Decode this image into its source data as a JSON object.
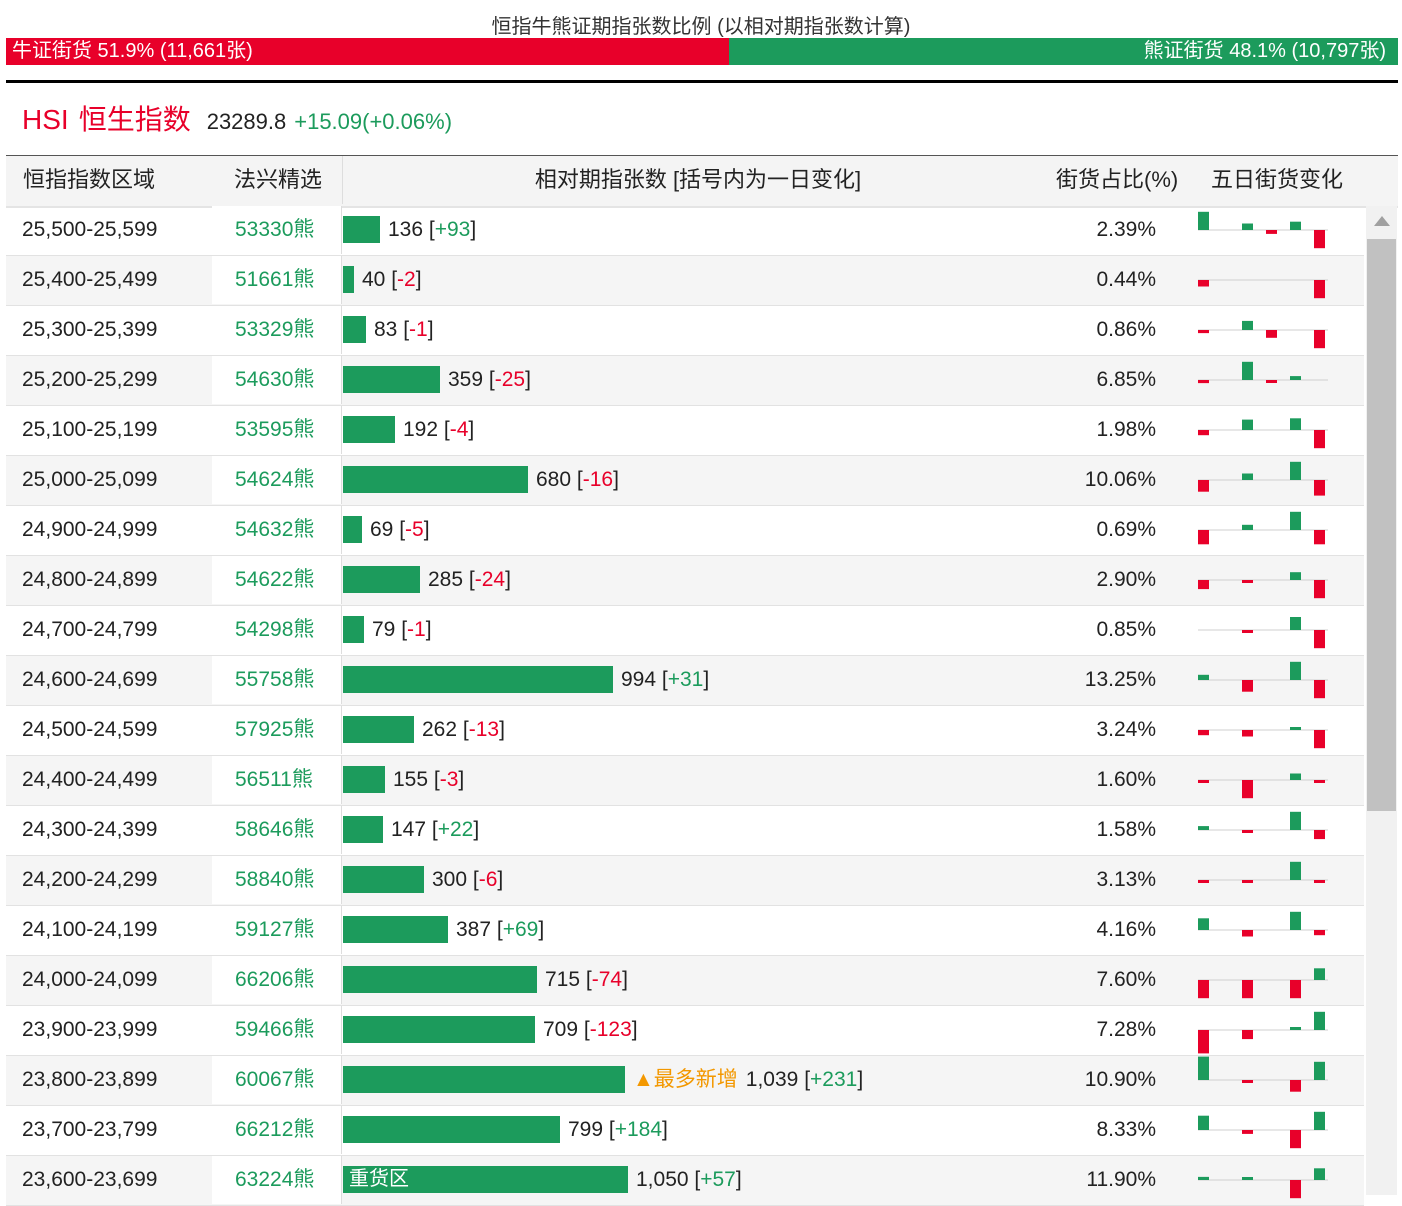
{
  "title": "恒指牛熊证期指张数比例 (以相对期指张数计算)",
  "ratio": {
    "bull_label": "牛证街货 51.9% (11,661张)",
    "bear_label": "熊证街货 48.1% (10,797张)",
    "bull_fraction": 0.519
  },
  "index": {
    "code": "HSI",
    "name": "恒生指数",
    "value": "23289.8",
    "change": "+15.09(+0.06%)"
  },
  "table": {
    "headers": {
      "range": "恒指指数区域",
      "pick": "法兴精选",
      "relative": "相对期指张数 [括号内为一日变化]",
      "share": "街货占比(%)",
      "five_day": "五日街货变化"
    },
    "max_value": 1050,
    "rows": [
      {
        "range": "25,500-25,599",
        "pick": "53330熊",
        "value": 136,
        "count": "136",
        "delta": "+93",
        "share": "2.39%",
        "tag": "",
        "bar_label": "",
        "five": [
          0,
          0.25,
          -0.15,
          0.32,
          -0.7,
          0.7
        ]
      },
      {
        "range": "25,400-25,499",
        "pick": "51661熊",
        "value": 40,
        "count": "40",
        "delta": "-2",
        "share": "0.44%",
        "tag": "",
        "bar_label": "",
        "five": [
          0,
          0,
          0,
          0,
          -0.7,
          -0.25
        ]
      },
      {
        "range": "25,300-25,399",
        "pick": "53329熊",
        "value": 83,
        "count": "83",
        "delta": "-1",
        "share": "0.86%",
        "tag": "",
        "bar_label": "",
        "five": [
          0,
          0.35,
          -0.3,
          0,
          -0.7,
          -0.12
        ]
      },
      {
        "range": "25,200-25,299",
        "pick": "54630熊",
        "value": 359,
        "count": "359",
        "delta": "-25",
        "share": "6.85%",
        "tag": "",
        "bar_label": "",
        "five": [
          0,
          0.7,
          -0.1,
          0.15,
          0,
          -0.12
        ]
      },
      {
        "range": "25,100-25,199",
        "pick": "53595熊",
        "value": 192,
        "count": "192",
        "delta": "-4",
        "share": "1.98%",
        "tag": "",
        "bar_label": "",
        "five": [
          0,
          0.4,
          0,
          0.45,
          -0.7,
          -0.2
        ]
      },
      {
        "range": "25,000-25,099",
        "pick": "54624熊",
        "value": 680,
        "count": "680",
        "delta": "-16",
        "share": "10.06%",
        "tag": "",
        "bar_label": "",
        "five": [
          0,
          0.25,
          0,
          0.7,
          -0.6,
          -0.45
        ]
      },
      {
        "range": "24,900-24,999",
        "pick": "54632熊",
        "value": 69,
        "count": "69",
        "delta": "-5",
        "share": "0.69%",
        "tag": "",
        "bar_label": "",
        "five": [
          0,
          0.2,
          0,
          0.7,
          -0.55,
          -0.55
        ]
      },
      {
        "range": "24,800-24,899",
        "pick": "54622熊",
        "value": 285,
        "count": "285",
        "delta": "-24",
        "share": "2.90%",
        "tag": "",
        "bar_label": "",
        "five": [
          0,
          -0.1,
          0,
          0.3,
          -0.7,
          -0.35
        ]
      },
      {
        "range": "24,700-24,799",
        "pick": "54298熊",
        "value": 79,
        "count": "79",
        "delta": "-1",
        "share": "0.85%",
        "tag": "",
        "bar_label": "",
        "five": [
          0,
          -0.1,
          0,
          0.5,
          -0.7,
          0
        ]
      },
      {
        "range": "24,600-24,699",
        "pick": "55758熊",
        "value": 994,
        "count": "994",
        "delta": "+31",
        "share": "13.25%",
        "tag": "",
        "bar_label": "",
        "five": [
          0,
          -0.45,
          0,
          0.7,
          -0.7,
          0.2
        ]
      },
      {
        "range": "24,500-24,599",
        "pick": "57925熊",
        "value": 262,
        "count": "262",
        "delta": "-13",
        "share": "3.24%",
        "tag": "",
        "bar_label": "",
        "five": [
          0,
          -0.25,
          0,
          0.1,
          -0.7,
          -0.2
        ]
      },
      {
        "range": "24,400-24,499",
        "pick": "56511熊",
        "value": 155,
        "count": "155",
        "delta": "-3",
        "share": "1.60%",
        "tag": "",
        "bar_label": "",
        "five": [
          0,
          -0.7,
          0,
          0.25,
          -0.05,
          -0.05
        ]
      },
      {
        "range": "24,300-24,399",
        "pick": "58646熊",
        "value": 147,
        "count": "147",
        "delta": "+22",
        "share": "1.58%",
        "tag": "",
        "bar_label": "",
        "five": [
          0,
          -0.1,
          0,
          0.7,
          -0.35,
          0.15
        ]
      },
      {
        "range": "24,200-24,299",
        "pick": "58840熊",
        "value": 300,
        "count": "300",
        "delta": "-6",
        "share": "3.13%",
        "tag": "",
        "bar_label": "",
        "five": [
          0,
          -0.1,
          0,
          0.7,
          -0.1,
          -0.1
        ]
      },
      {
        "range": "24,100-24,199",
        "pick": "59127熊",
        "value": 387,
        "count": "387",
        "delta": "+69",
        "share": "4.16%",
        "tag": "",
        "bar_label": "",
        "five": [
          0,
          -0.25,
          0,
          0.7,
          -0.2,
          0.45
        ]
      },
      {
        "range": "24,000-24,099",
        "pick": "66206熊",
        "value": 715,
        "count": "715",
        "delta": "-74",
        "share": "7.60%",
        "tag": "",
        "bar_label": "",
        "five": [
          0,
          -0.7,
          0,
          -0.7,
          0.45,
          -0.7
        ]
      },
      {
        "range": "23,900-23,999",
        "pick": "59466熊",
        "value": 709,
        "count": "709",
        "delta": "-123",
        "share": "7.28%",
        "tag": "",
        "bar_label": "",
        "five": [
          0,
          -0.35,
          0,
          0.1,
          0.7,
          -0.9
        ]
      },
      {
        "range": "23,800-23,899",
        "pick": "60067熊",
        "value": 1039,
        "count": "1,039",
        "delta": "+231",
        "share": "10.90%",
        "tag": "▲最多新增",
        "bar_label": "",
        "five": [
          0,
          -0.1,
          0,
          -0.45,
          0.7,
          0.9
        ]
      },
      {
        "range": "23,700-23,799",
        "pick": "66212熊",
        "value": 799,
        "count": "799",
        "delta": "+184",
        "share": "8.33%",
        "tag": "",
        "bar_label": "",
        "five": [
          0,
          -0.15,
          0,
          -0.7,
          0.7,
          0.55
        ]
      },
      {
        "range": "23,600-23,699",
        "pick": "63224熊",
        "value": 1050,
        "count": "1,050",
        "delta": "+57",
        "share": "11.90%",
        "tag": "",
        "bar_label": "重货区",
        "five": [
          0,
          0.1,
          0,
          -0.7,
          0.45,
          0.12
        ]
      }
    ]
  },
  "colors": {
    "bull": "#e8002a",
    "bear": "#1c9b5c",
    "accent": "#f39800"
  }
}
